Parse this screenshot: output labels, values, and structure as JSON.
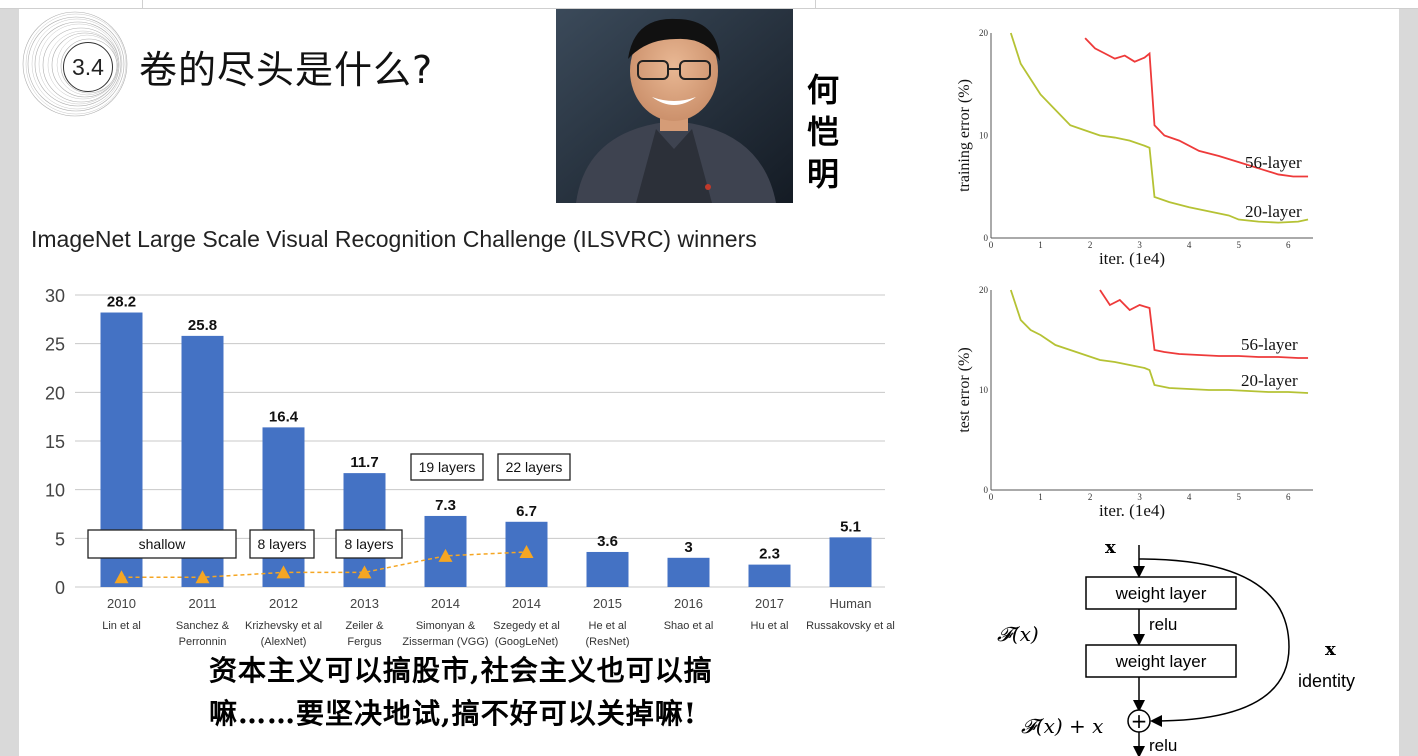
{
  "slide": {
    "section_number": "3.4",
    "title": "卷的尽头是什么?",
    "person_name": [
      "何",
      "恺",
      "明"
    ],
    "quote_lines": [
      "资本主义可以搞股市,社会主义也可以搞",
      "嘛……要坚决地试,搞不好可以关掉嘛!"
    ]
  },
  "chart_data": [
    {
      "type": "bar",
      "title": "ImageNet Large Scale Visual Recognition Challenge (ILSVRC) winners",
      "categories": [
        "2010",
        "2011",
        "2012",
        "2013",
        "2014",
        "2014",
        "2015",
        "2016",
        "2017",
        "Human"
      ],
      "category_sublabels": [
        [
          "Lin et al"
        ],
        [
          "Sanchez &",
          "Perronnin"
        ],
        [
          "Krizhevsky et al",
          "(AlexNet)"
        ],
        [
          "Zeiler &",
          "Fergus"
        ],
        [
          "Simonyan &",
          "Zisserman (VGG)"
        ],
        [
          "Szegedy et al",
          "(GoogLeNet)"
        ],
        [
          "He et al",
          "(ResNet)"
        ],
        [
          "Shao et al"
        ],
        [
          "Hu et al"
        ],
        [
          "Russakovsky et al"
        ]
      ],
      "values": [
        28.2,
        25.8,
        16.4,
        11.7,
        7.3,
        6.7,
        3.6,
        3,
        2.3,
        5.1
      ],
      "value_labels": [
        "28.2",
        "25.8",
        "16.4",
        "11.7",
        "7.3",
        "6.7",
        "3.6",
        "3",
        "2.3",
        "5.1"
      ],
      "ylim": [
        0,
        30
      ],
      "yticks": [
        "0",
        "5",
        "10",
        "15",
        "20",
        "25",
        "30"
      ],
      "grid": true,
      "bar_color": "#4472c4",
      "depth_markers": [
        1,
        1,
        1.5,
        1.5,
        3.2,
        3.6
      ],
      "marker_color": "#f5a623",
      "annotations": [
        "shallow",
        "8 layers",
        "8 layers",
        "19 layers",
        "22 layers"
      ]
    },
    {
      "type": "line",
      "ylabel": "training error (%)",
      "xlabel": "iter. (1e4)",
      "xticks": [
        "0",
        "1",
        "2",
        "3",
        "4",
        "5",
        "6"
      ],
      "yticks": [
        "0",
        "10",
        "20"
      ],
      "series": [
        {
          "name": "56-layer",
          "color": "#ee3a3a",
          "x": [
            1.9,
            2.1,
            2.3,
            2.5,
            2.7,
            2.9,
            3.1,
            3.2,
            3.3,
            3.5,
            3.8,
            4.2,
            4.6,
            5,
            5.4,
            5.8,
            6.1,
            6.4
          ],
          "y": [
            19.5,
            18.5,
            18,
            17.5,
            17.8,
            17.2,
            17.6,
            18,
            11,
            10,
            9.5,
            8.5,
            8,
            7.4,
            6.8,
            6.2,
            6,
            6
          ]
        },
        {
          "name": "20-layer",
          "color": "#b5c234",
          "x": [
            0.4,
            0.6,
            0.8,
            1,
            1.3,
            1.6,
            1.9,
            2.2,
            2.5,
            2.8,
            3.1,
            3.2,
            3.3,
            3.6,
            4,
            4.4,
            4.8,
            5,
            5.4,
            5.8,
            6.2,
            6.4
          ],
          "y": [
            20,
            17,
            15.5,
            14,
            12.5,
            11,
            10.5,
            10,
            9.8,
            9.5,
            9,
            8.8,
            4,
            3.5,
            3,
            2.6,
            2.2,
            1.8,
            1.6,
            1.5,
            1.6,
            1.8
          ]
        }
      ]
    },
    {
      "type": "line",
      "ylabel": "test error (%)",
      "xlabel": "iter. (1e4)",
      "xticks": [
        "0",
        "1",
        "2",
        "3",
        "4",
        "5",
        "6"
      ],
      "yticks": [
        "0",
        "10",
        "20"
      ],
      "series": [
        {
          "name": "56-layer",
          "color": "#ee3a3a",
          "x": [
            2.2,
            2.4,
            2.6,
            2.8,
            3,
            3.2,
            3.3,
            3.5,
            3.8,
            4.2,
            4.6,
            5,
            5.4,
            5.8,
            6.2,
            6.4
          ],
          "y": [
            20,
            18.5,
            19,
            18,
            18.5,
            18.2,
            14,
            13.8,
            13.6,
            13.5,
            13.4,
            13.4,
            13.3,
            13.3,
            13.2,
            13.2
          ]
        },
        {
          "name": "20-layer",
          "color": "#b5c234",
          "x": [
            0.4,
            0.6,
            0.8,
            1,
            1.3,
            1.6,
            1.9,
            2.2,
            2.5,
            2.8,
            3.1,
            3.2,
            3.3,
            3.6,
            4,
            4.4,
            4.8,
            5.2,
            5.6,
            6,
            6.4
          ],
          "y": [
            20,
            17,
            16,
            15.5,
            14.5,
            14,
            13.5,
            13,
            12.8,
            12.5,
            12.2,
            12,
            10.5,
            10.2,
            10.1,
            10,
            10,
            9.9,
            9.8,
            9.8,
            9.7
          ]
        }
      ]
    }
  ],
  "residual_block": {
    "input": "x",
    "layer1": "weight layer",
    "relu_mid": "relu",
    "layer2": "weight layer",
    "fx": "𝓕(x)",
    "sum": "𝓕(x) + x",
    "relu_out": "relu",
    "skip_x": "x",
    "skip_label": "identity",
    "plus": "+"
  }
}
